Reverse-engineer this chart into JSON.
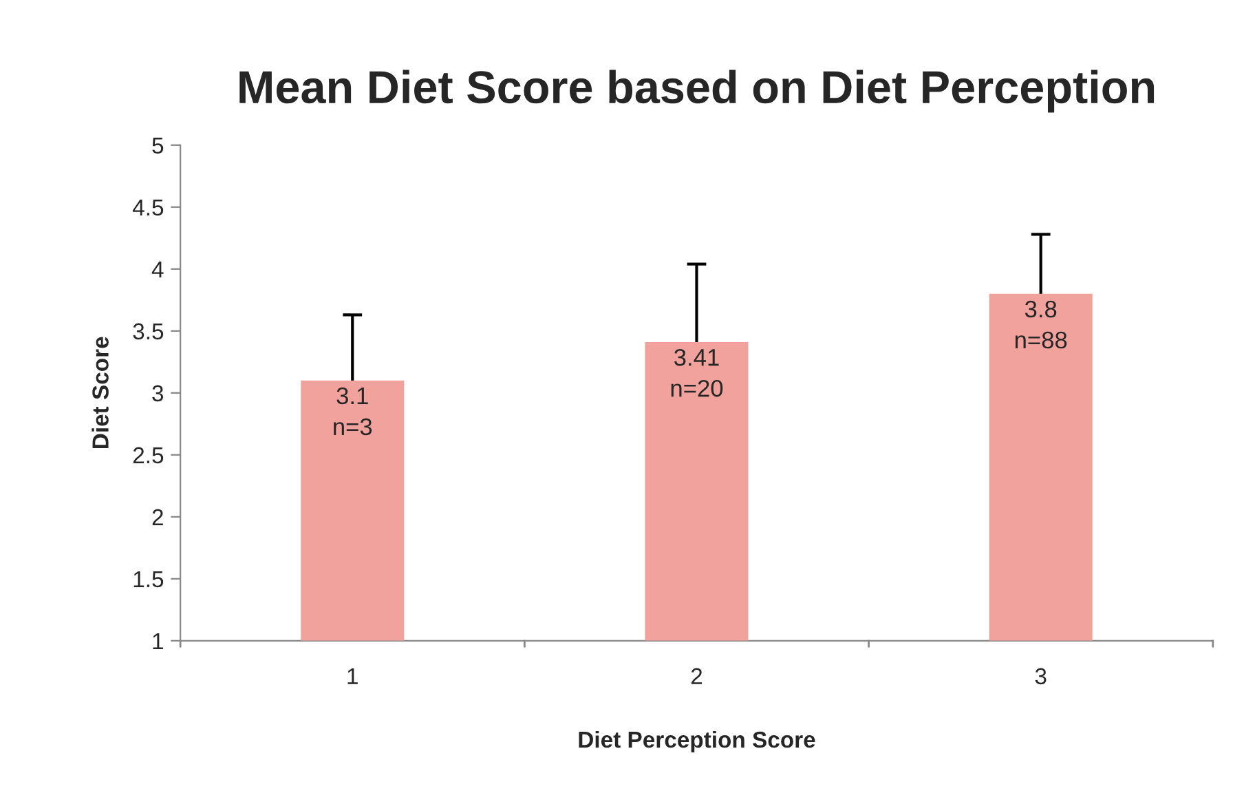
{
  "chart_data": {
    "type": "bar",
    "title": "Mean Diet Score based on Diet Perception",
    "xlabel": "Diet Perception Score",
    "ylabel": "Diet Score",
    "categories": [
      "1",
      "2",
      "3"
    ],
    "values": [
      3.1,
      3.41,
      3.8
    ],
    "errors": [
      0.53,
      0.63,
      0.48
    ],
    "value_labels": [
      "3.1\nn=3",
      "3.41\nn=20",
      "3.8\nn=88"
    ],
    "color": "#f2a29c",
    "ylim": [
      1,
      5
    ],
    "yticks": [
      1,
      1.5,
      2,
      2.5,
      3,
      3.5,
      4,
      4.5,
      5
    ],
    "grid": false,
    "legend": false
  }
}
